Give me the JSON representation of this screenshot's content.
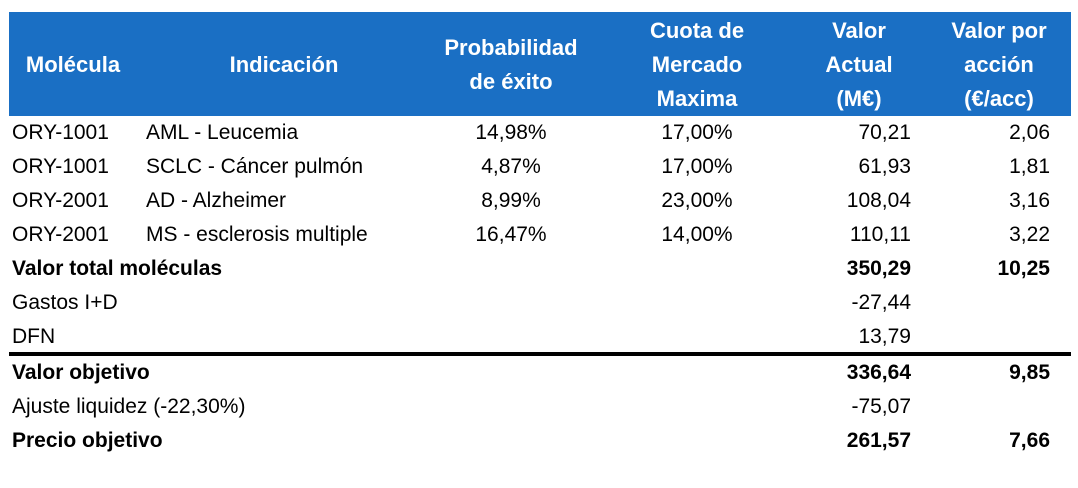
{
  "table": {
    "headers": {
      "molecula": "Molécula",
      "indicacion": "Indicación",
      "probabilidad_l1": "Probabilidad",
      "probabilidad_l2": "de éxito",
      "cuota_l1": "Cuota de",
      "cuota_l2": "Mercado",
      "cuota_l3": "Maxima",
      "valor_l1": "Valor",
      "valor_l2": "Actual",
      "valor_l3": "(M€)",
      "vpa_l1": "Valor por",
      "vpa_l2": "acción",
      "vpa_l3": "(€/acc)"
    },
    "molecules": [
      {
        "molecula": "ORY-1001",
        "indicacion": "AML - Leucemia",
        "probabilidad": "14,98%",
        "cuota": "17,00%",
        "valor": "70,21",
        "valor_accion": "2,06"
      },
      {
        "molecula": "ORY-1001",
        "indicacion": "SCLC - Cáncer pulmón",
        "probabilidad": "4,87%",
        "cuota": "17,00%",
        "valor": "61,93",
        "valor_accion": "1,81"
      },
      {
        "molecula": "ORY-2001",
        "indicacion": "AD - Alzheimer",
        "probabilidad": "8,99%",
        "cuota": "23,00%",
        "valor": "108,04",
        "valor_accion": "3,16"
      },
      {
        "molecula": "ORY-2001",
        "indicacion": "MS - esclerosis multiple",
        "probabilidad": "16,47%",
        "cuota": "14,00%",
        "valor": "110,11",
        "valor_accion": "3,22"
      }
    ],
    "total_moleculas": {
      "label": "Valor total moléculas",
      "valor": "350,29",
      "valor_accion": "10,25"
    },
    "gastos": {
      "label": "Gastos I+D",
      "valor": "-27,44"
    },
    "dfn": {
      "label": "DFN",
      "valor": "13,79"
    },
    "valor_objetivo": {
      "label": "Valor objetivo",
      "valor": "336,64",
      "valor_accion": "9,85"
    },
    "ajuste": {
      "label": "Ajuste liquidez (-22,30%)",
      "valor": "-75,07"
    },
    "precio_objetivo": {
      "label": "Precio objetivo",
      "valor": "261,57",
      "valor_accion": "7,66"
    }
  },
  "colors": {
    "header_bg": "#1a6fc4",
    "header_text": "#ffffff"
  }
}
